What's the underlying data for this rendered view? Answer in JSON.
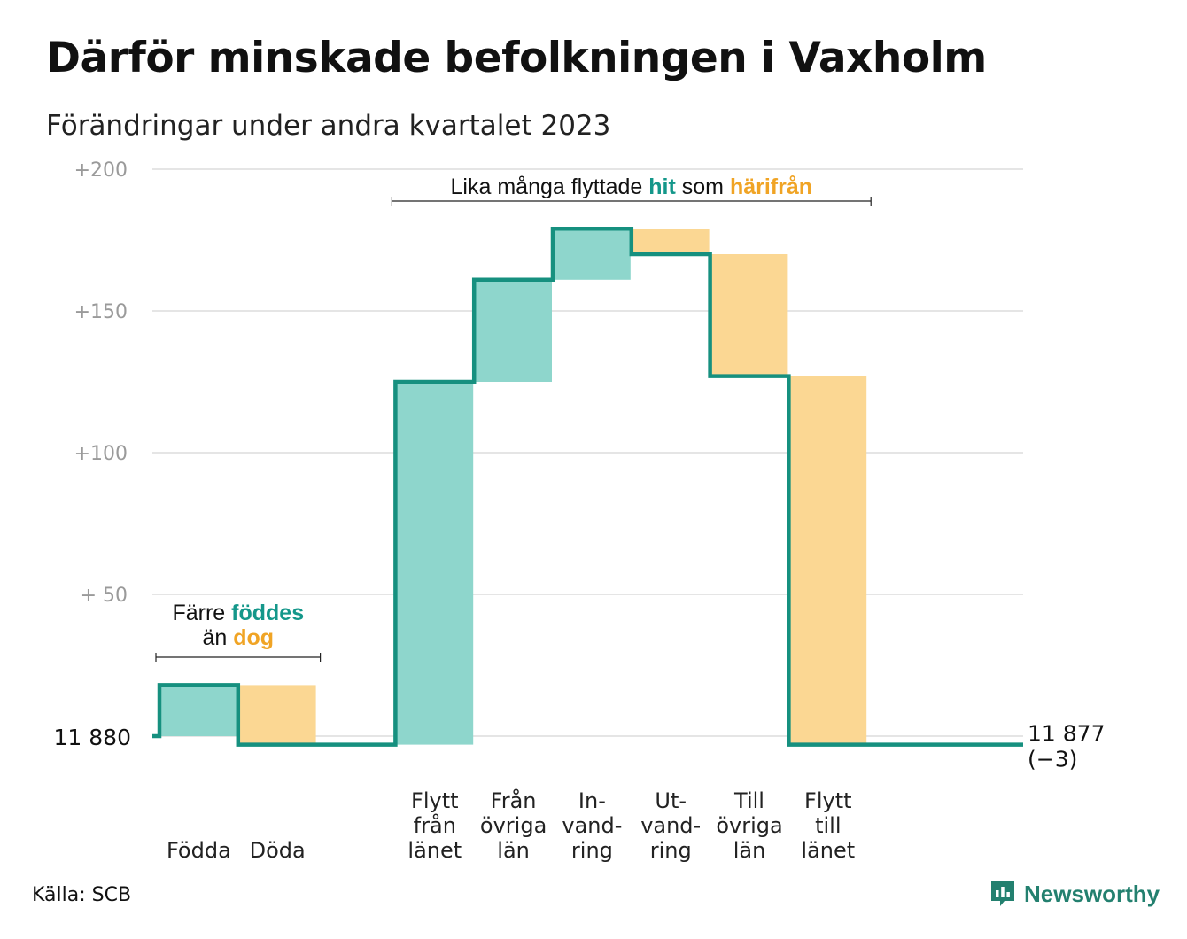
{
  "title": "Därför minskade befolkningen i Vaxholm",
  "subtitle": "Förändringar under andra kvartalet 2023",
  "source": "Källa: SCB",
  "brand": "Newsworthy",
  "colors": {
    "increase_fill": "#8ed6cc",
    "decrease_fill": "#fbd793",
    "line": "#16907f",
    "increase_text": "#14978a",
    "decrease_text": "#f0a425",
    "grid": "#e5e5e5",
    "tick": "#9a9a9a"
  },
  "chart_data": {
    "type": "waterfall",
    "base": 11880,
    "base_label": "11  880",
    "end_value": 11877,
    "end_label": "11 877",
    "end_change_label": "(−3)",
    "ylim": [
      0,
      200
    ],
    "yticks": [
      {
        "value": 50,
        "label": "+  50"
      },
      {
        "value": 100,
        "label": "+100"
      },
      {
        "value": 150,
        "label": "+150"
      },
      {
        "value": 200,
        "label": "+200"
      }
    ],
    "grid": true,
    "bars": [
      {
        "label_lines": [
          "Födda"
        ],
        "change": 18,
        "start": 0,
        "end": 18,
        "kind": "increase"
      },
      {
        "label_lines": [
          "Döda"
        ],
        "change": -21,
        "start": 18,
        "end": -3,
        "kind": "decrease"
      },
      {
        "label_lines": [],
        "change": 0,
        "start": -3,
        "end": -3,
        "kind": "none"
      },
      {
        "label_lines": [
          "Flytt",
          "från",
          "länet"
        ],
        "change": 128,
        "start": -3,
        "end": 125,
        "kind": "increase"
      },
      {
        "label_lines": [
          "Från",
          "övriga",
          "län"
        ],
        "change": 36,
        "start": 125,
        "end": 161,
        "kind": "increase"
      },
      {
        "label_lines": [
          "In-",
          "vand-",
          "ring"
        ],
        "change": 18,
        "start": 161,
        "end": 179,
        "kind": "increase"
      },
      {
        "label_lines": [
          "Ut-",
          "vand-",
          "ring"
        ],
        "change": -9,
        "start": 179,
        "end": 170,
        "kind": "decrease"
      },
      {
        "label_lines": [
          "Till",
          "övriga",
          "län"
        ],
        "change": -43,
        "start": 170,
        "end": 127,
        "kind": "decrease"
      },
      {
        "label_lines": [
          "Flytt",
          "till",
          "länet"
        ],
        "change": -130,
        "start": 127,
        "end": -3,
        "kind": "decrease"
      }
    ],
    "annotations": [
      {
        "id": "birth",
        "line1": {
          "pre": "Färre ",
          "highlight": "föddes",
          "highlight_kind": "increase",
          "post": ""
        },
        "line2": {
          "pre": "än ",
          "highlight": "dog",
          "highlight_kind": "decrease",
          "post": ""
        },
        "bracket_bars": [
          0,
          1
        ]
      },
      {
        "id": "migration",
        "line1": {
          "pre": "Lika många flyttade ",
          "highlight": "hit",
          "highlight_kind": "increase",
          "post": "  som ",
          "highlight2": "härifrån",
          "highlight2_kind": "decrease"
        },
        "bracket_bars": [
          3,
          8
        ]
      }
    ]
  }
}
